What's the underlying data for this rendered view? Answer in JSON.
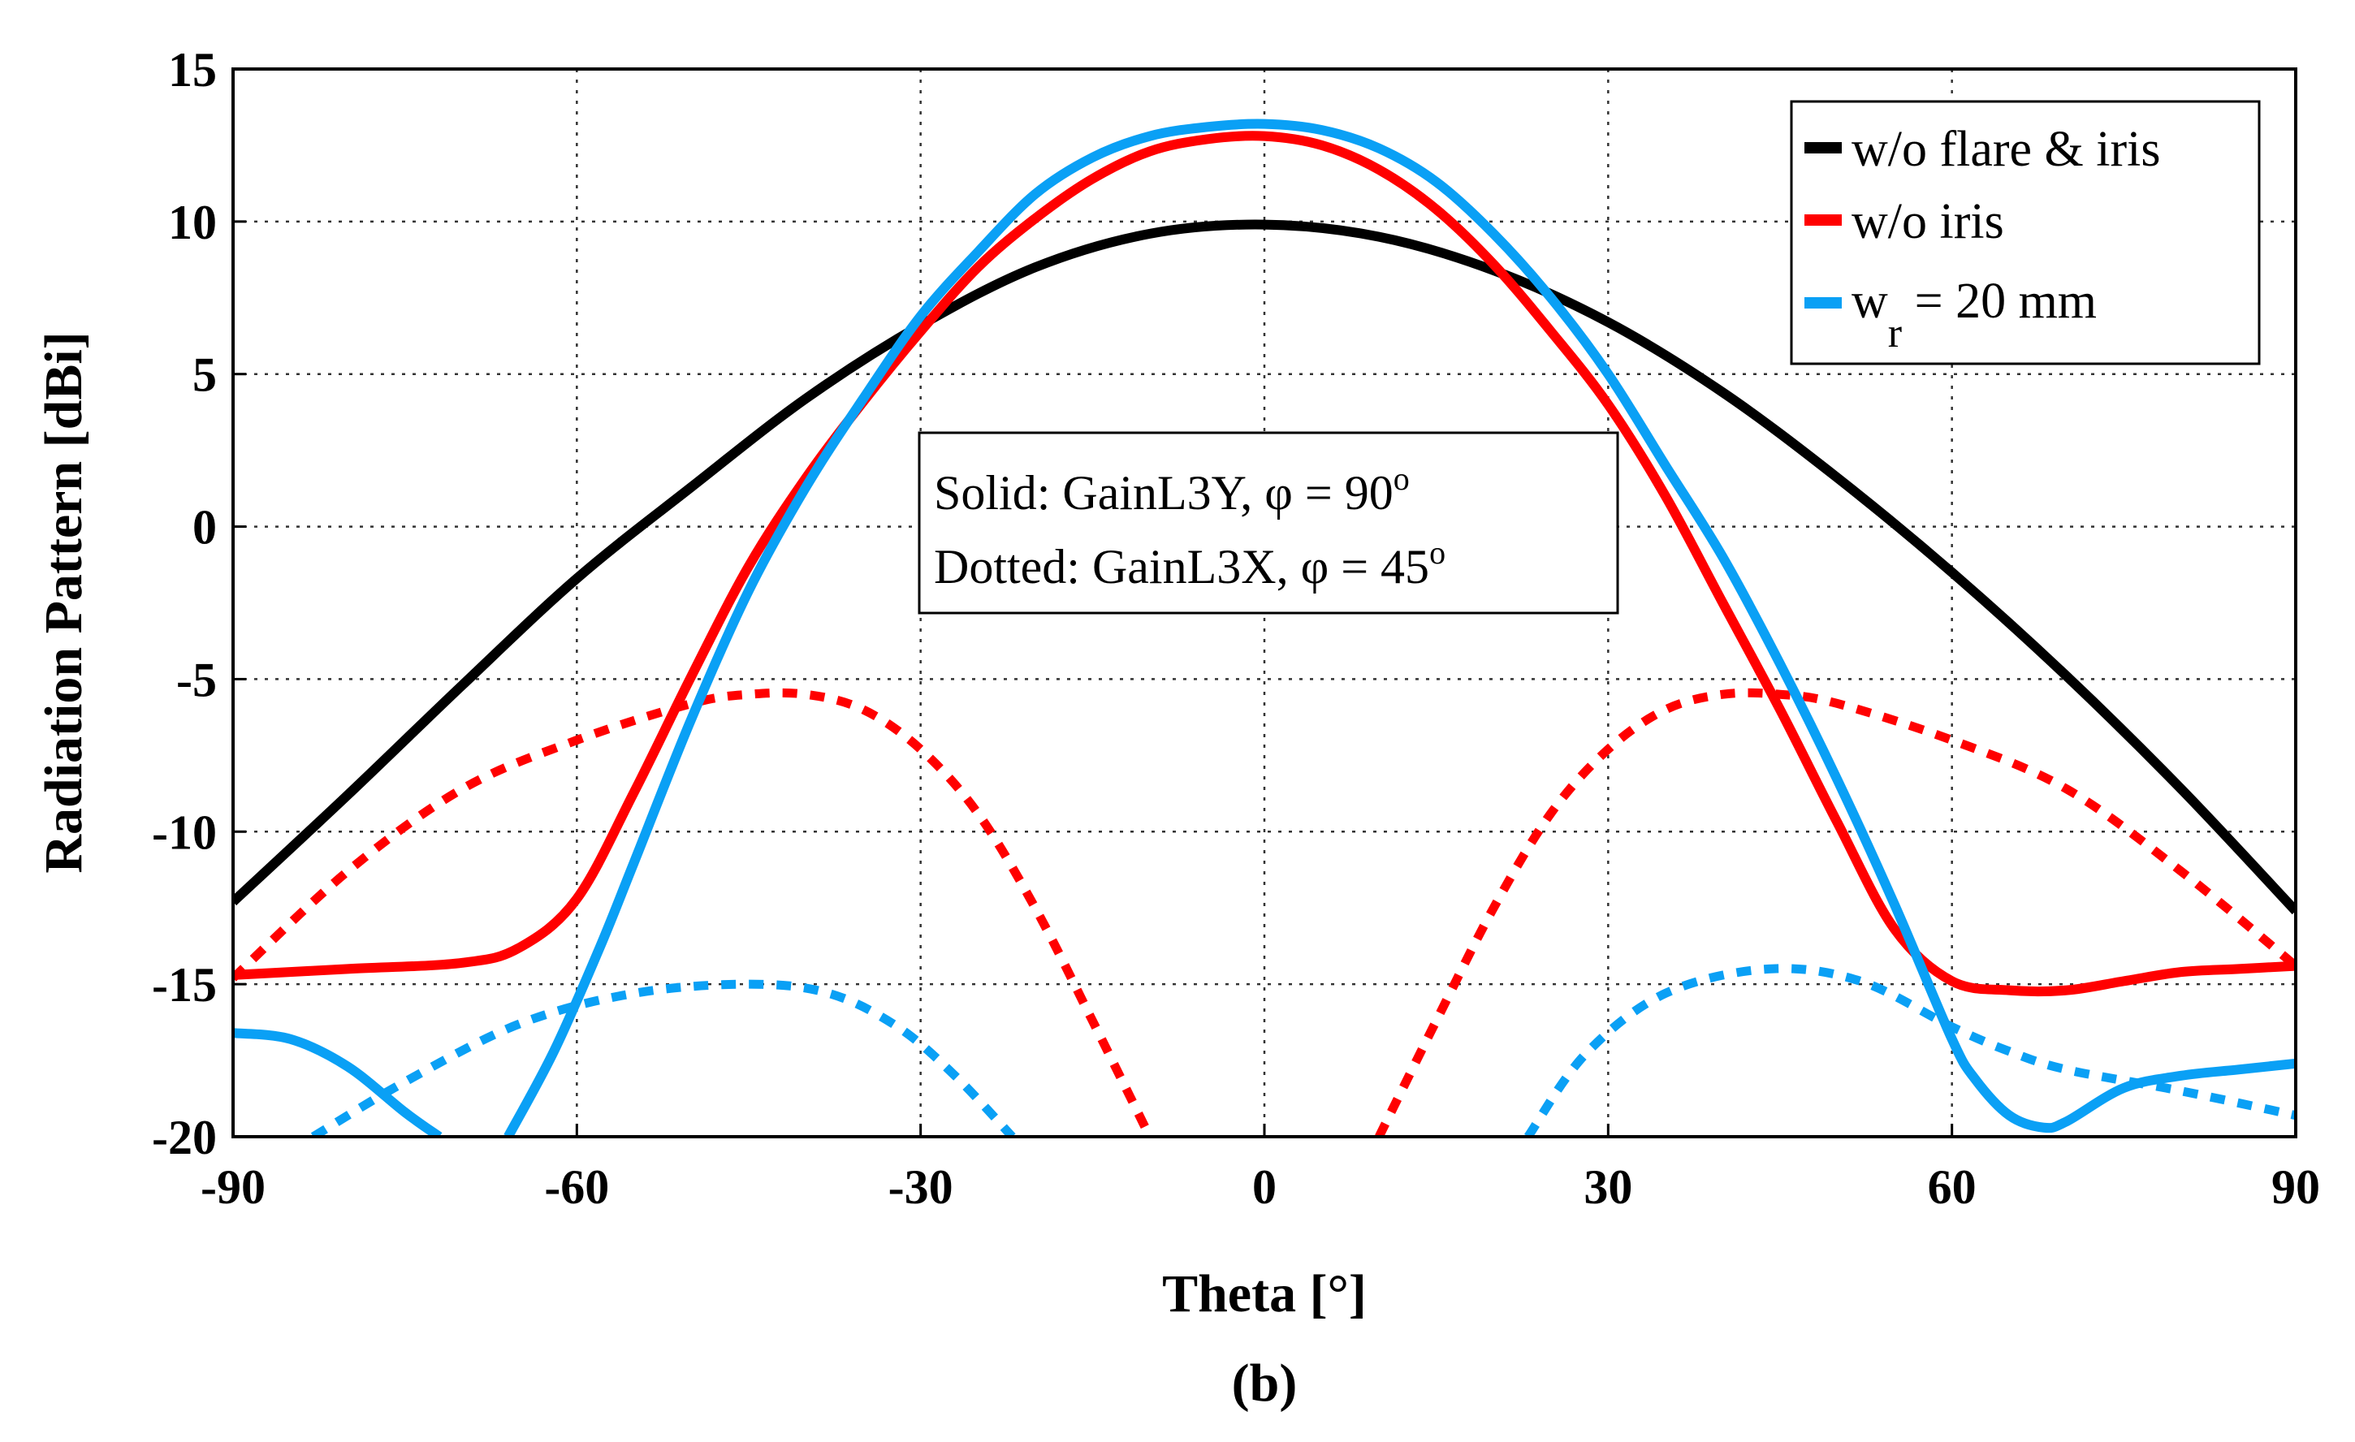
{
  "chart_data": {
    "type": "line",
    "title": "",
    "caption": "(b)",
    "xlabel": "Theta [°]",
    "ylabel": "Radiation Pattern [dBi]",
    "xlim": [
      -90,
      90
    ],
    "ylim": [
      -20,
      15
    ],
    "xticks": [
      -90,
      -60,
      -30,
      0,
      30,
      60,
      90
    ],
    "yticks": [
      15,
      10,
      5,
      0,
      -5,
      -10,
      -15,
      -20
    ],
    "grid": true,
    "legend_position": "top-right",
    "annotation": {
      "line1": "Solid: GainL3Y, φ = 90",
      "line1_sup": "o",
      "line2": "Dotted: GainL3X, φ = 45",
      "line2_sup": "o"
    },
    "legend": [
      {
        "id": "black",
        "label": "w/o flare & iris"
      },
      {
        "id": "red",
        "label": "w/o iris"
      },
      {
        "id": "blue",
        "label_main": "w",
        "label_sub": "r",
        "label_rest": " = 20 mm"
      }
    ],
    "colors": {
      "black": "#000000",
      "red": "#ff0000",
      "blue": "#0aa0f5",
      "grid": "#333333"
    },
    "series": [
      {
        "name": "w/o flare & iris — Solid (GainL3Y, φ=90°)",
        "color_key": "black",
        "style": "solid",
        "x": [
          -90,
          -80,
          -70,
          -60,
          -50,
          -40,
          -30,
          -20,
          -10,
          0,
          10,
          20,
          30,
          40,
          50,
          60,
          70,
          80,
          90
        ],
        "y": [
          -12.3,
          -8.8,
          -5.2,
          -1.7,
          1.3,
          4.2,
          6.6,
          8.5,
          9.6,
          9.9,
          9.5,
          8.4,
          6.7,
          4.4,
          1.6,
          -1.5,
          -4.9,
          -8.6,
          -12.6
        ]
      },
      {
        "name": "w/o iris — Solid (GainL3Y, φ=90°)",
        "color_key": "red",
        "style": "solid",
        "x": [
          -90,
          -80,
          -70,
          -65,
          -60,
          -55,
          -50,
          -45,
          -40,
          -35,
          -30,
          -25,
          -20,
          -15,
          -10,
          -5,
          0,
          5,
          10,
          15,
          20,
          25,
          30,
          35,
          40,
          45,
          50,
          55,
          60,
          65,
          70,
          75,
          80,
          85,
          90
        ],
        "y": [
          -14.7,
          -14.5,
          -14.3,
          -13.8,
          -12.2,
          -8.7,
          -4.9,
          -1.3,
          1.6,
          4.1,
          6.4,
          8.5,
          10.1,
          11.4,
          12.3,
          12.7,
          12.8,
          12.5,
          11.7,
          10.4,
          8.6,
          6.4,
          4.0,
          1.0,
          -2.5,
          -6.0,
          -9.7,
          -13.2,
          -14.9,
          -15.2,
          -15.2,
          -14.9,
          -14.6,
          -14.5,
          -14.4
        ]
      },
      {
        "name": "w_r = 20 mm — Solid (GainL3Y, φ=90°)",
        "color_key": "blue",
        "style": "solid",
        "segments": [
          {
            "x": [
              -90,
              -85,
              -80,
              -75,
              -72
            ],
            "y": [
              -16.6,
              -16.8,
              -17.7,
              -19.2,
              -20
            ]
          },
          {
            "x": [
              -66,
              -62,
              -58,
              -55,
              -50,
              -45,
              -40,
              -35,
              -30,
              -25,
              -20,
              -15,
              -10,
              -5,
              0,
              5,
              10,
              15,
              20,
              25,
              30,
              35,
              40,
              45,
              50,
              55,
              60,
              62,
              65,
              68,
              70,
              75,
              80,
              85,
              90
            ],
            "y": [
              -20,
              -17.2,
              -13.8,
              -11.0,
              -6.3,
              -2.1,
              1.3,
              4.2,
              6.9,
              9.0,
              10.9,
              12.1,
              12.8,
              13.1,
              13.2,
              13.0,
              12.4,
              11.3,
              9.6,
              7.5,
              5.0,
              2.0,
              -1.0,
              -4.5,
              -8.3,
              -12.4,
              -16.8,
              -18.1,
              -19.3,
              -19.7,
              -19.5,
              -18.4,
              -18.0,
              -17.8,
              -17.6
            ]
          }
        ]
      },
      {
        "name": "w/o iris — Dotted (GainL3X, φ=45°)",
        "color_key": "red",
        "style": "dotted",
        "segments": [
          {
            "x": [
              -90,
              -80,
              -70,
              -60,
              -50,
              -45,
              -40,
              -35,
              -30,
              -25,
              -20,
              -15,
              -10
            ],
            "y": [
              -14.8,
              -11.3,
              -8.6,
              -7.0,
              -5.8,
              -5.5,
              -5.5,
              -6.0,
              -7.3,
              -9.4,
              -12.5,
              -16.2,
              -20
            ]
          },
          {
            "x": [
              10,
              15,
              20,
              25,
              30,
              35,
              40,
              45,
              50,
              60,
              70,
              80,
              90
            ],
            "y": [
              -20,
              -16.2,
              -12.5,
              -9.4,
              -7.3,
              -6.0,
              -5.5,
              -5.5,
              -5.8,
              -7.0,
              -8.6,
              -11.3,
              -14.4
            ]
          }
        ]
      },
      {
        "name": "w_r = 20 mm — Dotted (GainL3X, φ=45°)",
        "color_key": "blue",
        "style": "dotted",
        "segments": [
          {
            "x": [
              -83,
              -75,
              -65,
              -55,
              -45,
              -38,
              -32,
              -27,
              -22
            ],
            "y": [
              -20,
              -18.2,
              -16.3,
              -15.3,
              -15.0,
              -15.3,
              -16.4,
              -18.0,
              -20
            ]
          },
          {
            "x": [
              23,
              28,
              35,
              44,
              52,
              60,
              65,
              70,
              80,
              90
            ],
            "y": [
              -20,
              -17.3,
              -15.3,
              -14.5,
              -14.9,
              -16.4,
              -17.2,
              -17.8,
              -18.5,
              -19.3
            ]
          }
        ]
      }
    ]
  }
}
